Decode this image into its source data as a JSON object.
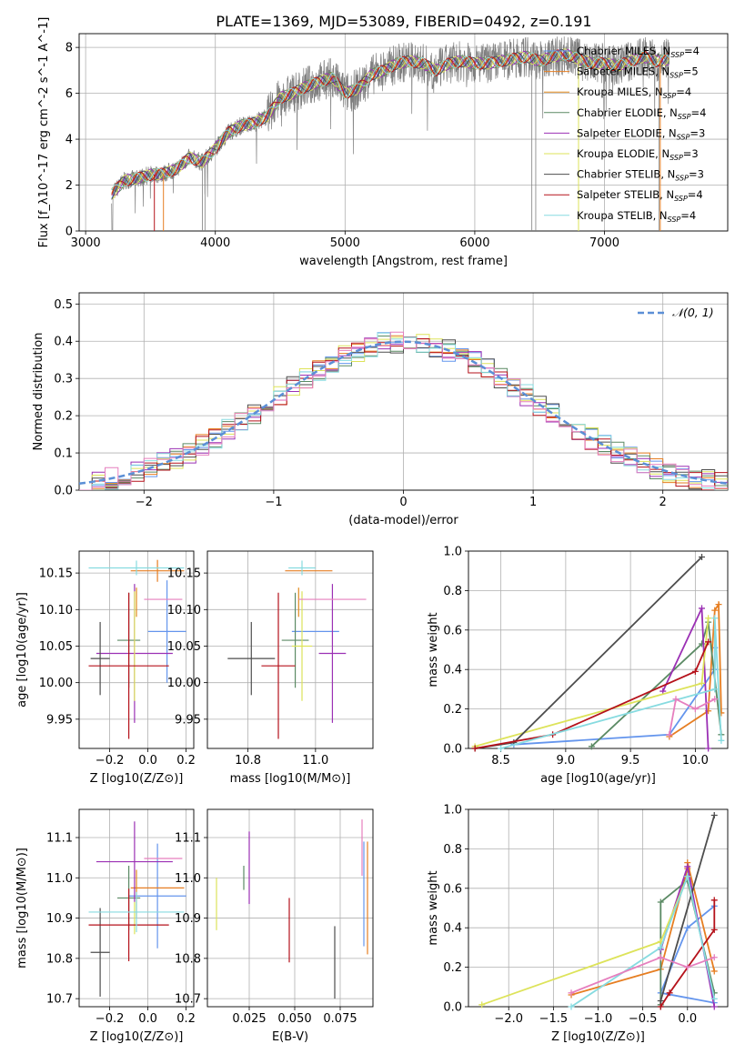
{
  "figure_title": "PLATE=1369, MJD=53089, FIBERID=0492, z=0.191",
  "colors": {
    "Chabrier MILES": "#6495ed",
    "Salpeter MILES": "#e67e22",
    "Kroupa MILES": "#e08a1e",
    "Chabrier ELODIE": "#5b8a64",
    "Salpeter ELODIE": "#9b30b4",
    "Kroupa ELODIE": "#dde35a",
    "Chabrier STELIB": "#4d4d4d",
    "Salpeter STELIB": "#b5121b",
    "Kroupa STELIB": "#87dbe0",
    "Kroupa STELIB extra": "#e67fbe",
    "data": "#7f7f7f",
    "gauss": "#5b8fd6",
    "grid": "#b0b0b0"
  },
  "chart_data": [
    {
      "id": "spectrum",
      "type": "line",
      "xlabel": "wavelength [Angstrom, rest frame]",
      "ylabel": "Flux [f_λ10^-17 erg cm^-2 s^-1 A^-1]",
      "xlim": [
        2950,
        7950
      ],
      "ylim": [
        0,
        8.6
      ],
      "xticks": [
        "3000",
        "4000",
        "5000",
        "6000",
        "7000"
      ],
      "yticks": [
        "0",
        "2",
        "4",
        "6",
        "8"
      ],
      "legend": [
        {
          "label": "Chabrier MILES, N",
          "sub": "SSP",
          "val": "=4",
          "color": "#6495ed"
        },
        {
          "label": "Salpeter MILES, N",
          "sub": "SSP",
          "val": "=5",
          "color": "#e67e22"
        },
        {
          "label": "Kroupa MILES, N",
          "sub": "SSP",
          "val": "=4",
          "color": "#e08a1e"
        },
        {
          "label": "Chabrier ELODIE, N",
          "sub": "SSP",
          "val": "=4",
          "color": "#5b8a64"
        },
        {
          "label": "Salpeter ELODIE, N",
          "sub": "SSP",
          "val": "=3",
          "color": "#9b30b4"
        },
        {
          "label": "Kroupa ELODIE, N",
          "sub": "SSP",
          "val": "=3",
          "color": "#dde35a"
        },
        {
          "label": "Chabrier STELIB, N",
          "sub": "SSP",
          "val": "=3",
          "color": "#4d4d4d"
        },
        {
          "label": "Salpeter STELIB, N",
          "sub": "SSP",
          "val": "=4",
          "color": "#b5121b"
        },
        {
          "label": "Kroupa STELIB, N",
          "sub": "SSP",
          "val": "=4",
          "color": "#87dbe0"
        }
      ],
      "continuum": {
        "x": [
          3200,
          3300,
          3400,
          3500,
          3600,
          3700,
          3800,
          3900,
          4000,
          4100,
          4200,
          4300,
          4400,
          4500,
          4600,
          4700,
          4800,
          4900,
          5000,
          5100,
          5200,
          5300,
          5400,
          5500,
          5600,
          5700,
          5800,
          5900,
          6000,
          6100,
          6200,
          6300,
          6400,
          6500,
          6600,
          6700,
          6800,
          6900,
          7000,
          7100,
          7200,
          7300,
          7400,
          7500
        ],
        "y": [
          1.6,
          2.2,
          2.3,
          2.45,
          2.5,
          2.7,
          3.2,
          3.0,
          3.6,
          4.3,
          4.6,
          4.7,
          5.0,
          5.8,
          6.0,
          6.3,
          6.5,
          6.7,
          6.0,
          6.2,
          6.8,
          7.0,
          7.3,
          7.4,
          7.3,
          7.0,
          7.3,
          7.4,
          7.3,
          7.3,
          7.4,
          7.5,
          7.6,
          7.4,
          7.6,
          7.7,
          7.5,
          7.3,
          7.3,
          7.2,
          7.4,
          7.6,
          7.4,
          7.5
        ]
      }
    },
    {
      "id": "residuals",
      "type": "line",
      "xlabel": "(data-model)/error",
      "ylabel": "Normed distribution",
      "xlim": [
        -2.5,
        2.5
      ],
      "ylim": [
        0,
        0.53
      ],
      "xticks": [
        "−2",
        "−1",
        "0",
        "1",
        "2"
      ],
      "yticks": [
        "0.0",
        "0.1",
        "0.2",
        "0.3",
        "0.4",
        "0.5"
      ],
      "legend": "N(0,1)",
      "gauss_label": "𝒩(0, 1)"
    },
    {
      "id": "age_vs_Z",
      "type": "scatter",
      "xlabel": "Z [log10(Z/Z⊙)]",
      "ylabel": "age  [log10(age/yr)]",
      "xlim": [
        -0.36,
        0.24
      ],
      "ylim": [
        9.91,
        10.18
      ],
      "xticks": [
        "−0.2",
        "0.0",
        "0.2"
      ],
      "yticks": [
        "9.95",
        "10.00",
        "10.05",
        "10.10",
        "10.15"
      ],
      "points": [
        {
          "x": 0.1,
          "y": 10.07,
          "xerr": 0.1,
          "yerr": 0.07,
          "c": "#6495ed"
        },
        {
          "x": 0.05,
          "y": 10.153,
          "xerr": 0.14,
          "yerr": 0.015,
          "c": "#e67e22"
        },
        {
          "x": -0.06,
          "y": 10.11,
          "xerr": 0.0,
          "yerr": 0.02,
          "c": "#e08a1e"
        },
        {
          "x": -0.1,
          "y": 10.058,
          "xerr": 0.06,
          "yerr": 0.065,
          "c": "#5b8a64"
        },
        {
          "x": -0.07,
          "y": 10.04,
          "xerr": 0.2,
          "yerr": 0.095,
          "c": "#9b30b4"
        },
        {
          "x": -0.07,
          "y": 10.05,
          "xerr": 0.0,
          "yerr": 0.075,
          "c": "#dde35a"
        },
        {
          "x": -0.25,
          "y": 10.033,
          "xerr": 0.05,
          "yerr": 0.05,
          "c": "#4d4d4d"
        },
        {
          "x": -0.1,
          "y": 10.023,
          "xerr": 0.21,
          "yerr": 0.1,
          "c": "#b5121b"
        },
        {
          "x": -0.06,
          "y": 10.157,
          "xerr": 0.25,
          "yerr": 0.01,
          "c": "#87dbe0"
        },
        {
          "x": 0.08,
          "y": 10.114,
          "xerr": 0.1,
          "yerr": 0.0,
          "c": "#e67fbe"
        }
      ]
    },
    {
      "id": "age_vs_mass",
      "type": "scatter",
      "xlabel": "mass [log10(M/M⊙)]",
      "ylabel": "",
      "xlim": [
        10.68,
        11.17
      ],
      "ylim": [
        9.91,
        10.18
      ],
      "xticks": [
        "10.8",
        "11.0"
      ],
      "yticks": [
        "9.95",
        "10.00",
        "10.05",
        "10.10",
        "10.15"
      ],
      "points": [
        {
          "x": 11.0,
          "y": 10.07,
          "xerr": 0.07,
          "yerr": 0.0,
          "c": "#6495ed"
        },
        {
          "x": 10.98,
          "y": 10.153,
          "xerr": 0.07,
          "yerr": 0.0,
          "c": "#e67e22"
        },
        {
          "x": 10.95,
          "y": 10.11,
          "xerr": 0.0,
          "yerr": 0.02,
          "c": "#e08a1e"
        },
        {
          "x": 10.94,
          "y": 10.058,
          "xerr": 0.04,
          "yerr": 0.065,
          "c": "#5b8a64"
        },
        {
          "x": 11.05,
          "y": 10.04,
          "xerr": 0.04,
          "yerr": 0.095,
          "c": "#9b30b4"
        },
        {
          "x": 10.96,
          "y": 10.05,
          "xerr": 0.03,
          "yerr": 0.075,
          "c": "#dde35a"
        },
        {
          "x": 10.81,
          "y": 10.033,
          "xerr": 0.07,
          "yerr": 0.05,
          "c": "#4d4d4d"
        },
        {
          "x": 10.89,
          "y": 10.023,
          "xerr": 0.05,
          "yerr": 0.1,
          "c": "#b5121b"
        },
        {
          "x": 10.96,
          "y": 10.157,
          "xerr": 0.04,
          "yerr": 0.01,
          "c": "#87dbe0"
        },
        {
          "x": 11.05,
          "y": 10.114,
          "xerr": 0.1,
          "yerr": 0.0,
          "c": "#e67fbe"
        }
      ]
    },
    {
      "id": "weight_vs_age",
      "type": "line",
      "xlabel": "age  [log10(age/yr)]",
      "ylabel": "mass weight",
      "xlim": [
        8.25,
        10.25
      ],
      "ylim": [
        0,
        1.0
      ],
      "xticks": [
        "8.5",
        "9.0",
        "9.5",
        "10.0"
      ],
      "yticks": [
        "0.0",
        "0.2",
        "0.4",
        "0.6",
        "0.8",
        "1.0"
      ]
    },
    {
      "id": "mass_vs_Z",
      "type": "scatter",
      "xlabel": "Z [log10(Z/Z⊙)]",
      "ylabel": "mass [log10(M/M⊙)]",
      "xlim": [
        -0.36,
        0.24
      ],
      "ylim": [
        10.68,
        11.17
      ],
      "xticks": [
        "−0.2",
        "0.0",
        "0.2"
      ],
      "yticks": [
        "10.7",
        "10.8",
        "10.9",
        "11.0",
        "11.1"
      ],
      "points": [
        {
          "x": 0.05,
          "y": 10.955,
          "xerr": 0.15,
          "yerr": 0.13,
          "c": "#6495ed"
        },
        {
          "x": 0.05,
          "y": 10.975,
          "xerr": 0.14,
          "yerr": 0.0,
          "c": "#e67e22"
        },
        {
          "x": -0.06,
          "y": 10.96,
          "xerr": 0.0,
          "yerr": 0.06,
          "c": "#e08a1e"
        },
        {
          "x": -0.1,
          "y": 10.95,
          "xerr": 0.06,
          "yerr": 0.08,
          "c": "#5b8a64"
        },
        {
          "x": -0.07,
          "y": 11.04,
          "xerr": 0.2,
          "yerr": 0.1,
          "c": "#9b30b4"
        },
        {
          "x": -0.07,
          "y": 10.9,
          "xerr": 0.0,
          "yerr": 0.04,
          "c": "#dde35a"
        },
        {
          "x": -0.25,
          "y": 10.815,
          "xerr": 0.05,
          "yerr": 0.11,
          "c": "#4d4d4d"
        },
        {
          "x": -0.1,
          "y": 10.883,
          "xerr": 0.21,
          "yerr": 0.09,
          "c": "#b5121b"
        },
        {
          "x": -0.06,
          "y": 10.915,
          "xerr": 0.25,
          "yerr": 0.05,
          "c": "#87dbe0"
        },
        {
          "x": 0.08,
          "y": 11.048,
          "xerr": 0.1,
          "yerr": 0.0,
          "c": "#e67fbe"
        }
      ]
    },
    {
      "id": "mass_vs_ebv",
      "type": "scatter",
      "xlabel": "E(B-V)",
      "ylabel": "",
      "xlim": [
        0.002,
        0.093
      ],
      "ylim": [
        10.68,
        11.17
      ],
      "xticks": [
        "0.025",
        "0.050",
        "0.075"
      ],
      "yticks": [
        "10.7",
        "10.8",
        "10.9",
        "11.0",
        "11.1"
      ],
      "points": [
        {
          "x": 0.088,
          "y": 10.96,
          "xerr": 0.0,
          "yerr": 0.13,
          "c": "#6495ed"
        },
        {
          "x": 0.09,
          "y": 10.95,
          "xerr": 0.0,
          "yerr": 0.14,
          "c": "#e67e22"
        },
        {
          "x": 0.022,
          "y": 11.0,
          "xerr": 0.0,
          "yerr": 0.03,
          "c": "#5b8a64"
        },
        {
          "x": 0.025,
          "y": 11.025,
          "xerr": 0.0,
          "yerr": 0.09,
          "c": "#9b30b4"
        },
        {
          "x": 0.007,
          "y": 10.935,
          "xerr": 0.0,
          "yerr": 0.065,
          "c": "#dde35a"
        },
        {
          "x": 0.072,
          "y": 10.79,
          "xerr": 0.0,
          "yerr": 0.09,
          "c": "#4d4d4d"
        },
        {
          "x": 0.047,
          "y": 10.87,
          "xerr": 0.0,
          "yerr": 0.08,
          "c": "#b5121b"
        },
        {
          "x": 0.087,
          "y": 11.075,
          "xerr": 0.0,
          "yerr": 0.07,
          "c": "#e67fbe"
        }
      ]
    },
    {
      "id": "weight_vs_Z",
      "type": "line",
      "xlabel": "Z [log10(Z/Z⊙)]",
      "ylabel": "mass weight",
      "xlim": [
        -2.45,
        0.45
      ],
      "ylim": [
        0,
        1.0
      ],
      "xticks": [
        "−2.0",
        "−1.5",
        "−1.0",
        "−0.5",
        "0.0"
      ],
      "yticks": [
        "0.0",
        "0.2",
        "0.4",
        "0.6",
        "0.8",
        "1.0"
      ]
    }
  ],
  "weight_series": [
    {
      "c": "#6495ed",
      "age": [
        8.6,
        9.8,
        10.15,
        10.15
      ],
      "w": [
        0.02,
        0.07,
        0.4,
        0.51
      ],
      "Z": [
        0.3,
        -0.3,
        0.0,
        0.3
      ]
    },
    {
      "c": "#e67e22",
      "age": [
        9.8,
        10.1,
        10.15,
        10.18,
        10.2
      ],
      "w": [
        0.06,
        0.19,
        0.7,
        0.73,
        0.18
      ],
      "Z": [
        -1.3,
        -0.3,
        0.0,
        0.0,
        0.3
      ]
    },
    {
      "c": "#5b8a64",
      "age": [
        9.2,
        10.05,
        10.1,
        10.2
      ],
      "w": [
        0.01,
        0.53,
        0.64,
        0.07
      ],
      "Z": [
        -0.3,
        -0.3,
        0.0,
        0.3
      ]
    },
    {
      "c": "#9b30b4",
      "age": [
        9.75,
        10.05,
        10.1
      ],
      "w": [
        0.29,
        0.71,
        0.0
      ],
      "Z": [
        -0.3,
        0.0,
        0.3
      ]
    },
    {
      "c": "#dde35a",
      "age": [
        8.3,
        10.05,
        10.1
      ],
      "w": [
        0.01,
        0.33,
        0.66
      ],
      "Z": [
        -2.3,
        -0.3,
        0.0
      ]
    },
    {
      "c": "#4d4d4d",
      "age": [
        8.3,
        8.6,
        10.05
      ],
      "w": [
        0.0,
        0.03,
        0.97
      ],
      "Z": [
        -0.3,
        -0.3,
        0.3
      ]
    },
    {
      "c": "#b5121b",
      "age": [
        8.3,
        8.9,
        10.0,
        10.1
      ],
      "w": [
        0.0,
        0.07,
        0.39,
        0.54
      ],
      "Z": [
        -0.3,
        -0.2,
        0.3,
        0.3
      ]
    },
    {
      "c": "#87dbe0",
      "age": [
        8.5,
        10.15,
        10.15,
        10.2
      ],
      "w": [
        0.0,
        0.3,
        0.66,
        0.04
      ],
      "Z": [
        -1.3,
        -0.3,
        0.0,
        0.3
      ]
    },
    {
      "c": "#e67fbe",
      "age": [
        9.8,
        9.85,
        10.0,
        10.15
      ],
      "w": [
        0.07,
        0.25,
        0.2,
        0.25
      ],
      "Z": [
        -1.3,
        -0.3,
        0.0,
        0.3
      ]
    }
  ]
}
